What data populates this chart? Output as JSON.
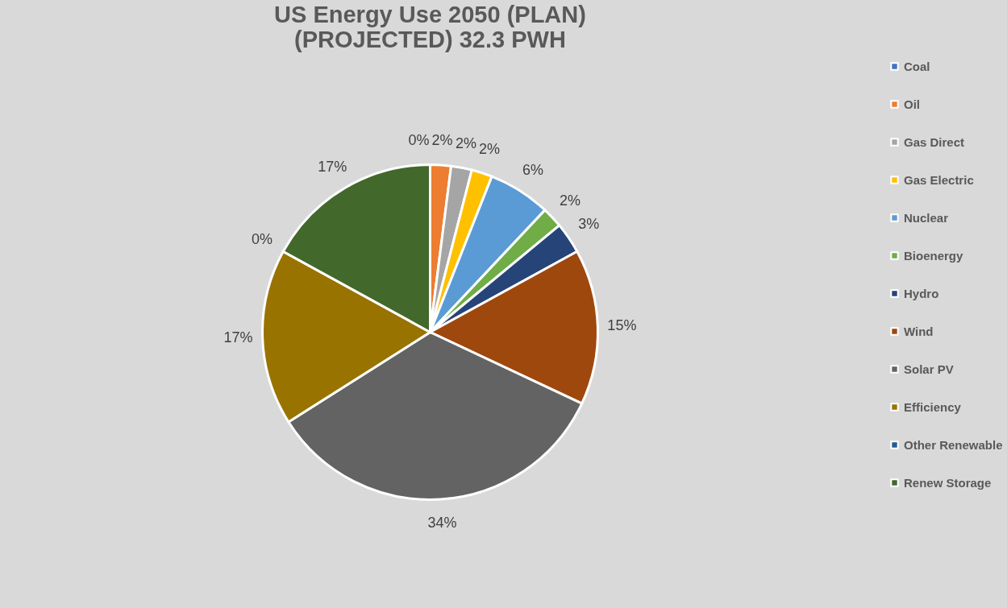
{
  "chart_data": {
    "type": "pie",
    "title": [
      "US Energy Use 2050 (PLAN)",
      "(PROJECTED) 32.3 PWH"
    ],
    "categories": [
      "Coal",
      "Oil",
      "Gas Direct",
      "Gas Electric",
      "Nuclear",
      "Bioenergy",
      "Hydro",
      "Wind",
      "Solar PV",
      "Efficiency",
      "Other Renewable",
      "Renew Storage"
    ],
    "values": [
      0,
      2,
      2,
      2,
      6,
      2,
      3,
      15,
      34,
      17,
      0,
      17
    ],
    "value_labels": [
      "0%",
      "2%",
      "2%",
      "2%",
      "6%",
      "2%",
      "3%",
      "15%",
      "34%",
      "17%",
      "0%",
      "17%"
    ],
    "colors": [
      "#4472c4",
      "#ed7d31",
      "#a5a5a5",
      "#ffc000",
      "#5b9bd5",
      "#70ad47",
      "#264478",
      "#9e480e",
      "#636363",
      "#997300",
      "#255e91",
      "#43682b"
    ],
    "legend": "right"
  }
}
